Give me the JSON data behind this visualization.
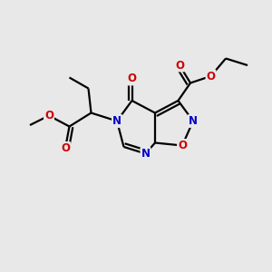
{
  "bg_color": "#e8e8e8",
  "bond_color": "#000000",
  "bond_width": 1.6,
  "atom_colors": {
    "N": "#0000cc",
    "O": "#cc0000"
  },
  "font_size": 8.5,
  "fig_size": [
    3.0,
    3.0
  ],
  "dpi": 100
}
